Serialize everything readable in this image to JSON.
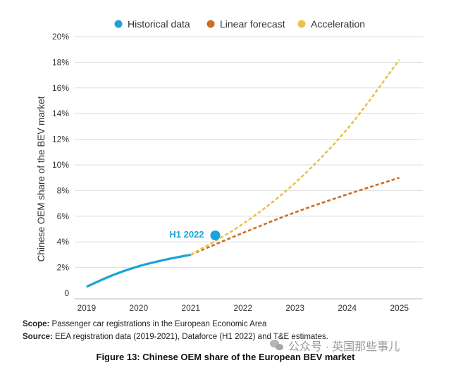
{
  "chart_data": {
    "type": "line",
    "ylabel": "Chinese OEM share of the BEV market",
    "xlabel": "",
    "xlim": [
      2018.8,
      2025.45
    ],
    "ylim": [
      0,
      20
    ],
    "x_ticks": [
      "2019",
      "2020",
      "2021",
      "2022",
      "2023",
      "2024",
      "2025"
    ],
    "y_ticks": [
      {
        "value": 0,
        "label": "0"
      },
      {
        "value": 2,
        "label": "2%"
      },
      {
        "value": 4,
        "label": "4%"
      },
      {
        "value": 6,
        "label": "6%"
      },
      {
        "value": 8,
        "label": "8%"
      },
      {
        "value": 10,
        "label": "10%"
      },
      {
        "value": 12,
        "label": "12%"
      },
      {
        "value": 14,
        "label": "14%"
      },
      {
        "value": 16,
        "label": "16%"
      },
      {
        "value": 18,
        "label": "18%"
      },
      {
        "value": 20,
        "label": "20%"
      }
    ],
    "grid": "horizontal",
    "legend": "top-center",
    "series": [
      {
        "name": "Historical data",
        "color": "#1aa3d9",
        "style": "solid",
        "points": [
          [
            2019,
            0.5
          ],
          [
            2019.5,
            1.4
          ],
          [
            2020,
            2.1
          ],
          [
            2020.5,
            2.6
          ],
          [
            2021,
            3.0
          ]
        ]
      },
      {
        "name": "Linear forecast",
        "color": "#cc6e25",
        "style": "dashed",
        "points": [
          [
            2021,
            3.0
          ],
          [
            2022,
            4.7
          ],
          [
            2023,
            6.3
          ],
          [
            2024,
            7.7
          ],
          [
            2025,
            9.0
          ]
        ]
      },
      {
        "name": "Acceleration",
        "color": "#e8c24a",
        "style": "dashed",
        "points": [
          [
            2021,
            3.0
          ],
          [
            2022,
            5.4
          ],
          [
            2023,
            8.6
          ],
          [
            2024,
            12.8
          ],
          [
            2025,
            18.2
          ]
        ]
      }
    ],
    "highlight_point": {
      "x": 2021.47,
      "y": 4.5,
      "label": "H1 2022",
      "color": "#1aa3d9"
    }
  },
  "notes": {
    "scope_label": "Scope:",
    "scope_text": " Passenger car registrations in the European Economic Area",
    "source_label": "Source:",
    "source_text": " EEA registration data (2019-2021), Dataforce (H1 2022) and T&E estimates."
  },
  "caption": "Figure 13: Chinese OEM share of the European BEV market",
  "watermark": {
    "text": "公众号 · 英国那些事儿",
    "icon": "wechat-icon"
  }
}
